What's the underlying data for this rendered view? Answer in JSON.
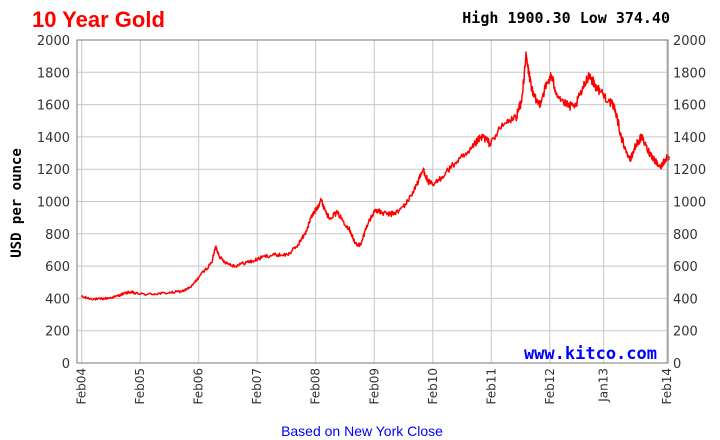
{
  "chart_data": {
    "type": "line",
    "title": "10 Year Gold",
    "summary": {
      "high_label": "High",
      "high": "1900.30",
      "low_label": "Low",
      "low": "374.40"
    },
    "ylabel": "USD per ounce",
    "xlabel": "Based on New York Close",
    "watermark": "www.kitco.com",
    "ylim": [
      0,
      2000
    ],
    "y_ticks": [
      "0",
      "200",
      "400",
      "600",
      "800",
      "1000",
      "1200",
      "1400",
      "1600",
      "1800",
      "2000"
    ],
    "x_ticks": [
      "Feb04",
      "Feb05",
      "Feb06",
      "Feb07",
      "Feb08",
      "Feb09",
      "Feb10",
      "Feb11",
      "Feb12",
      "Jan13",
      "Feb14"
    ],
    "grid": true,
    "line_color": "#ff0000",
    "series": [
      {
        "values": [
          [
            2004.08,
            410
          ],
          [
            2004.2,
            400
          ],
          [
            2004.35,
            395
          ],
          [
            2004.5,
            400
          ],
          [
            2004.65,
            410
          ],
          [
            2004.8,
            430
          ],
          [
            2004.92,
            440
          ],
          [
            2005.0,
            430
          ],
          [
            2005.2,
            425
          ],
          [
            2005.4,
            430
          ],
          [
            2005.6,
            435
          ],
          [
            2005.8,
            445
          ],
          [
            2005.95,
            470
          ],
          [
            2006.1,
            540
          ],
          [
            2006.3,
            620
          ],
          [
            2006.37,
            720
          ],
          [
            2006.45,
            650
          ],
          [
            2006.55,
            620
          ],
          [
            2006.7,
            600
          ],
          [
            2006.9,
            625
          ],
          [
            2007.0,
            630
          ],
          [
            2007.2,
            660
          ],
          [
            2007.4,
            670
          ],
          [
            2007.6,
            670
          ],
          [
            2007.75,
            720
          ],
          [
            2007.9,
            800
          ],
          [
            2008.0,
            900
          ],
          [
            2008.1,
            960
          ],
          [
            2008.17,
            1010
          ],
          [
            2008.3,
            900
          ],
          [
            2008.45,
            930
          ],
          [
            2008.55,
            880
          ],
          [
            2008.67,
            820
          ],
          [
            2008.75,
            740
          ],
          [
            2008.85,
            730
          ],
          [
            2008.95,
            850
          ],
          [
            2009.1,
            950
          ],
          [
            2009.2,
            930
          ],
          [
            2009.35,
            920
          ],
          [
            2009.5,
            940
          ],
          [
            2009.65,
            1000
          ],
          [
            2009.8,
            1100
          ],
          [
            2009.92,
            1200
          ],
          [
            2010.0,
            1120
          ],
          [
            2010.1,
            1100
          ],
          [
            2010.3,
            1180
          ],
          [
            2010.5,
            1250
          ],
          [
            2010.7,
            1300
          ],
          [
            2010.85,
            1380
          ],
          [
            2010.95,
            1400
          ],
          [
            2011.05,
            1360
          ],
          [
            2011.3,
            1480
          ],
          [
            2011.5,
            1520
          ],
          [
            2011.6,
            1620
          ],
          [
            2011.67,
            1900
          ],
          [
            2011.72,
            1800
          ],
          [
            2011.8,
            1650
          ],
          [
            2011.9,
            1600
          ],
          [
            2012.0,
            1700
          ],
          [
            2012.1,
            1780
          ],
          [
            2012.2,
            1670
          ],
          [
            2012.35,
            1600
          ],
          [
            2012.5,
            1580
          ],
          [
            2012.65,
            1700
          ],
          [
            2012.75,
            1790
          ],
          [
            2012.85,
            1720
          ],
          [
            2012.95,
            1680
          ],
          [
            2013.1,
            1620
          ],
          [
            2013.2,
            1570
          ],
          [
            2013.3,
            1400
          ],
          [
            2013.45,
            1250
          ],
          [
            2013.55,
            1350
          ],
          [
            2013.65,
            1400
          ],
          [
            2013.75,
            1320
          ],
          [
            2013.85,
            1270
          ],
          [
            2013.97,
            1210
          ],
          [
            2014.05,
            1260
          ],
          [
            2014.12,
            1280
          ]
        ]
      }
    ]
  }
}
